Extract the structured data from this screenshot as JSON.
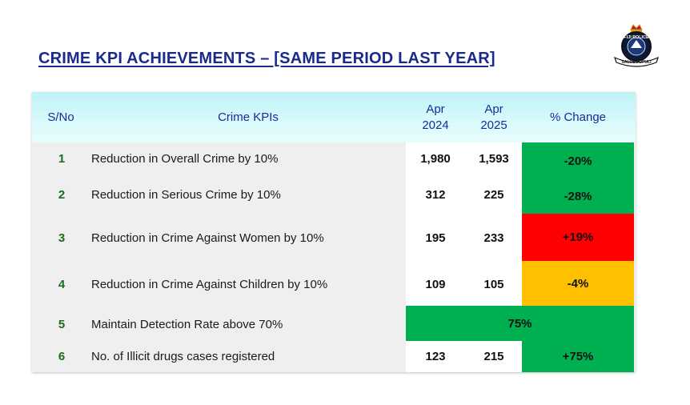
{
  "title": "CRIME KPI ACHIEVEMENTS – [SAME PERIOD LAST YEAR]",
  "logo": {
    "icon": "fiji-police-crest-icon",
    "text_top": "FIJI POLICE",
    "text_bottom": "SALUS POPULI"
  },
  "colors": {
    "green": "#00b050",
    "red": "#ff0000",
    "amber": "#ffc000",
    "header_text": "#1a2a9a"
  },
  "table": {
    "headers": {
      "sno": "S/No",
      "kpi": "Crime KPIs",
      "col1_line1": "Apr",
      "col1_line2": "2024",
      "col2_line1": "Apr",
      "col2_line2": "2025",
      "change": "% Change"
    },
    "rows": [
      {
        "sno": "1",
        "kpi": "Reduction in Overall Crime by 10%",
        "v2024": "1,980",
        "v2025": "1,593",
        "change": "-20%",
        "status": "green"
      },
      {
        "sno": "2",
        "kpi": "Reduction in Serious Crime by 10%",
        "v2024": "312",
        "v2025": "225",
        "change": "-28%",
        "status": "green"
      },
      {
        "sno": "3",
        "kpi": "Reduction in Crime Against Women by 10%",
        "v2024": "195",
        "v2025": "233",
        "change": "+19%",
        "status": "red"
      },
      {
        "sno": "4",
        "kpi": "Reduction in Crime Against Children by 10%",
        "v2024": "109",
        "v2025": "105",
        "change": "-4%",
        "status": "amber"
      },
      {
        "sno": "5",
        "kpi": "Maintain Detection Rate above 70%",
        "merged_value": "75%",
        "status": "green"
      },
      {
        "sno": "6",
        "kpi": "No. of Illicit drugs cases registered",
        "v2024": "123",
        "v2025": "215",
        "change": "+75%",
        "status": "green"
      }
    ]
  }
}
